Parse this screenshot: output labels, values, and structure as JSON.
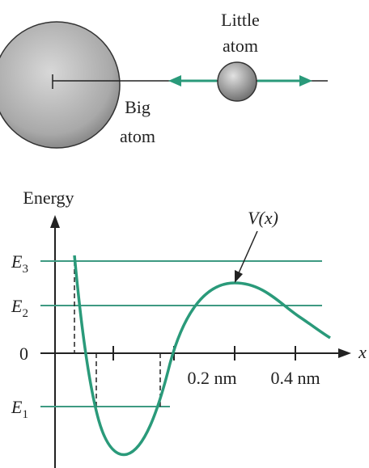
{
  "atoms": {
    "little_atom": [
      "Little",
      "atom"
    ],
    "big_atom": [
      "Big",
      "atom"
    ]
  },
  "graph": {
    "y_axis_label": "Energy",
    "x_axis_label": "x",
    "curve_label": "V(x)",
    "levels": [
      {
        "symbol": "E",
        "sub": "3"
      },
      {
        "symbol": "E",
        "sub": "2"
      },
      {
        "symbol": "0",
        "sub": ""
      },
      {
        "symbol": "E",
        "sub": "1"
      }
    ],
    "x_tick_labels": [
      "0.2 nm",
      "0.4 nm"
    ]
  }
}
